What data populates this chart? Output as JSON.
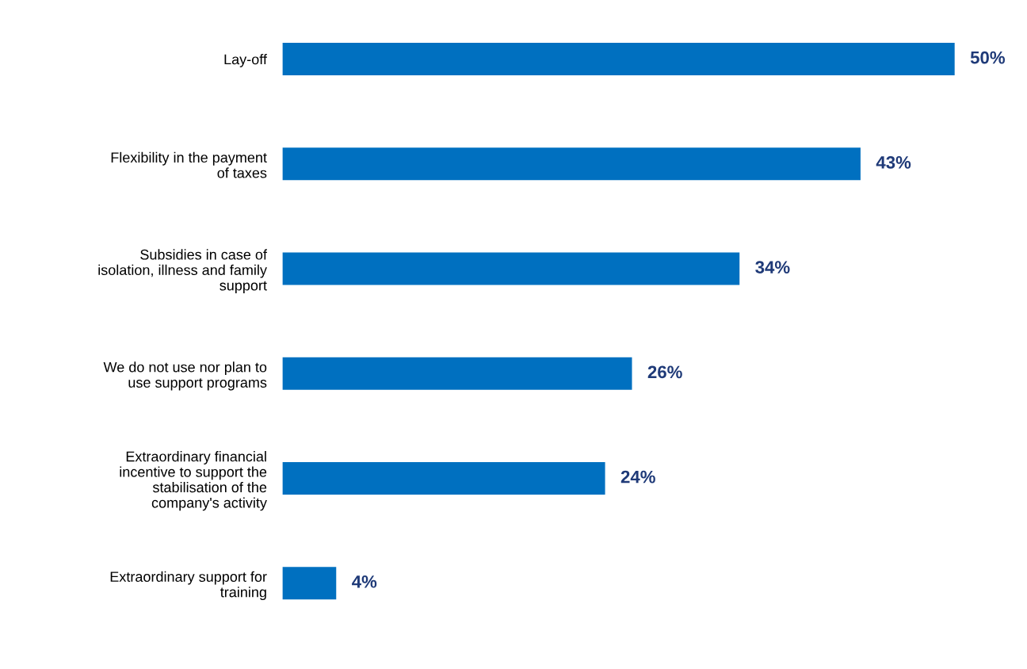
{
  "chart_data": {
    "type": "bar",
    "orientation": "horizontal",
    "categories": [
      "Lay-off",
      "Flexibility in the payment\nof taxes",
      "Subsidies in case of\nisolation, illness and family\nsupport",
      "We do not use nor plan to\nuse support programs",
      "Extraordinary financial\nincentive to support the\nstabilisation of the\ncompany's activity",
      "Extraordinary support for\ntraining"
    ],
    "values": [
      50,
      43,
      34,
      26,
      24,
      4
    ],
    "value_labels": [
      "50%",
      "43%",
      "34%",
      "26%",
      "24%",
      "4%"
    ],
    "color": "#0070c0",
    "grid": false,
    "legend": false
  }
}
